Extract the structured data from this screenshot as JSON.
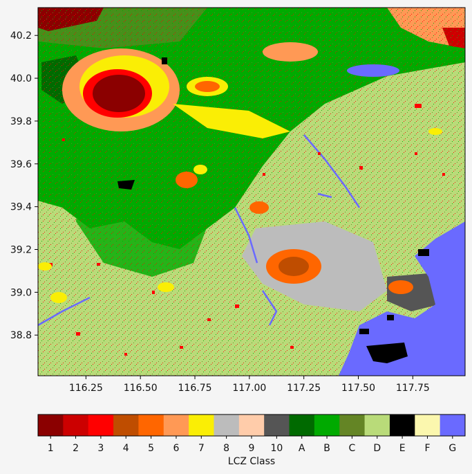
{
  "map": {
    "x_ticks": [
      "116.25",
      "116.50",
      "116.75",
      "117.00",
      "117.25",
      "117.50",
      "117.75"
    ],
    "x_tick_values": [
      116.25,
      116.5,
      116.75,
      117.0,
      117.25,
      117.5,
      117.75
    ],
    "x_range": [
      116.03,
      117.99
    ],
    "y_ticks": [
      "40.2",
      "40.0",
      "39.8",
      "39.6",
      "39.4",
      "39.2",
      "39.0",
      "38.8"
    ],
    "y_tick_values": [
      40.2,
      40.0,
      39.8,
      39.6,
      39.4,
      39.2,
      39.0,
      38.8
    ],
    "y_range": [
      38.61,
      40.33
    ]
  },
  "legend": {
    "label": "LCZ Class",
    "classes": [
      {
        "code": "1",
        "color": "#8b0000"
      },
      {
        "code": "2",
        "color": "#cc0000"
      },
      {
        "code": "3",
        "color": "#ff0000"
      },
      {
        "code": "4",
        "color": "#bf4d00"
      },
      {
        "code": "5",
        "color": "#ff6600"
      },
      {
        "code": "6",
        "color": "#ff9955"
      },
      {
        "code": "7",
        "color": "#faee05"
      },
      {
        "code": "8",
        "color": "#bcbcbc"
      },
      {
        "code": "9",
        "color": "#ffccaa"
      },
      {
        "code": "10",
        "color": "#555555"
      },
      {
        "code": "A",
        "color": "#006a00"
      },
      {
        "code": "B",
        "color": "#00aa00"
      },
      {
        "code": "C",
        "color": "#648525"
      },
      {
        "code": "D",
        "color": "#b9db79"
      },
      {
        "code": "E",
        "color": "#000000"
      },
      {
        "code": "F",
        "color": "#fbf7ae"
      },
      {
        "code": "G",
        "color": "#6a6aff"
      }
    ]
  }
}
